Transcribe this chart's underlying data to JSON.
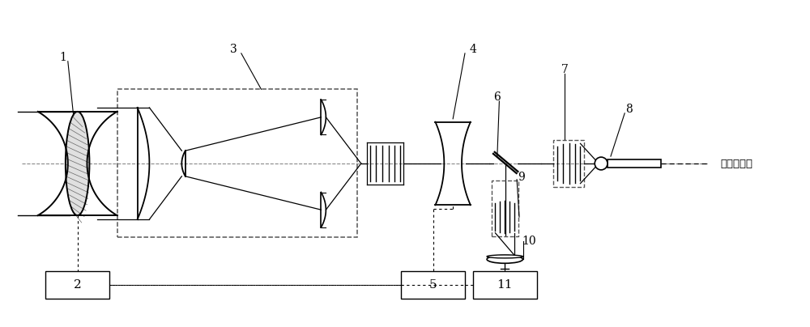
{
  "bg_color": "#ffffff",
  "line_color": "#000000",
  "dashed_color": "#555555",
  "fig_width": 10.0,
  "fig_height": 4.04,
  "dpi": 100,
  "label_1": "1",
  "label_2": "2",
  "label_3": "3",
  "label_4": "4",
  "label_5": "5",
  "label_6": "6",
  "label_7": "7",
  "label_8": "8",
  "label_9": "9",
  "label_10": "10",
  "label_11": "11",
  "text_comm": "至通信系统",
  "optical_axis_y": 20.2,
  "xlim": [
    0,
    100
  ],
  "ylim": [
    0,
    40.4
  ]
}
